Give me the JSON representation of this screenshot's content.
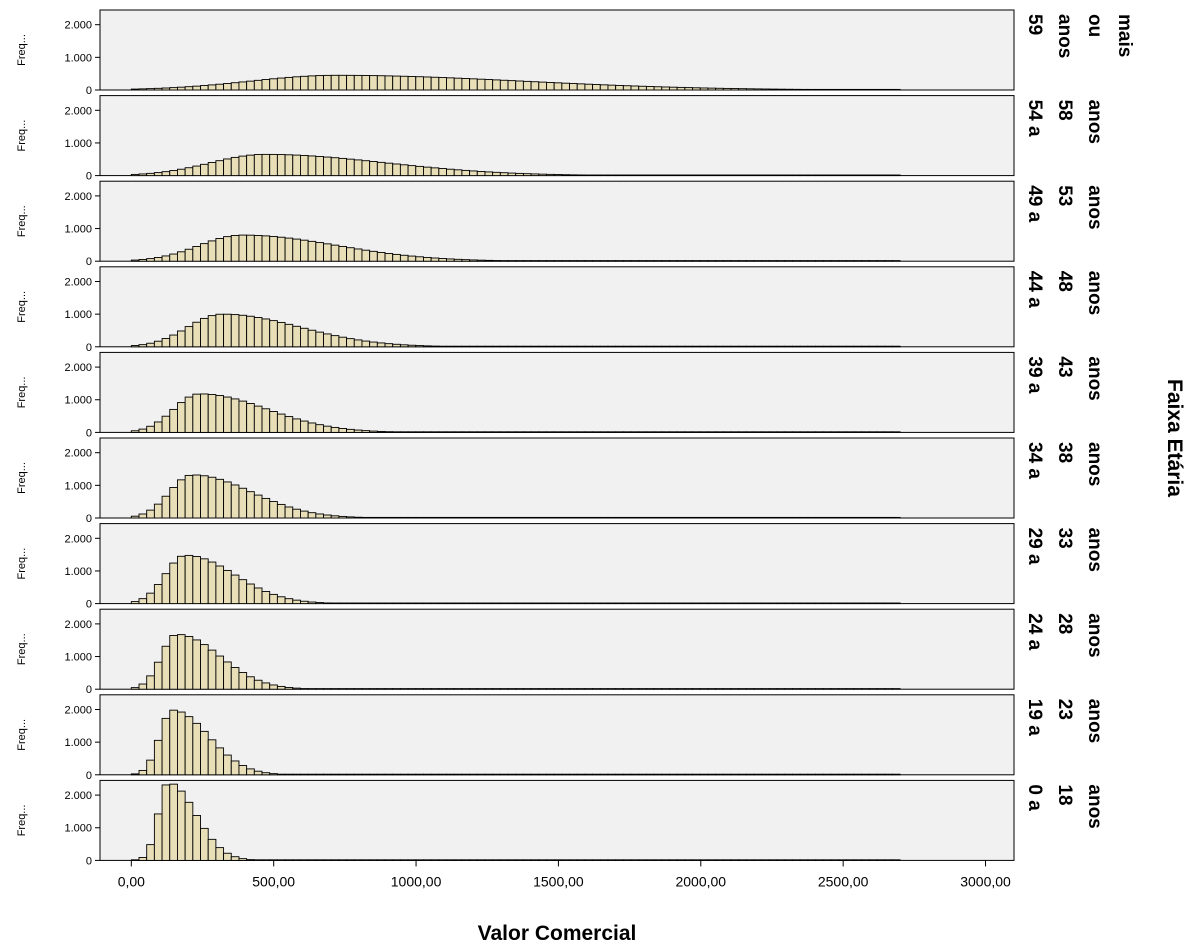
{
  "chart_data": {
    "type": "histogram-panel",
    "xlabel": "Valor Comercial",
    "facet_label": "Faixa Etária",
    "ylabel_short": "Freq...",
    "x_ticks": [
      "0,00",
      "500,00",
      "1000,00",
      "1500,00",
      "2000,00",
      "2500,00",
      "3000,00"
    ],
    "x_tick_values": [
      0,
      500,
      1000,
      1500,
      2000,
      2500,
      3000
    ],
    "xlim": [
      -110,
      3100
    ],
    "y_ticks": [
      "2.000",
      "1.000",
      "0"
    ],
    "y_tick_values": [
      2000,
      1000,
      0
    ],
    "ylim": [
      0,
      2450
    ],
    "bin_width": 27,
    "x_data_max": 2700,
    "colors": {
      "bar": "#e8deb8",
      "panel": "#f1f1f1",
      "border": "#000000"
    },
    "panels": [
      {
        "label": [
          "59",
          "anos",
          "ou",
          "mais"
        ],
        "peak_x": 720,
        "peak": 450,
        "sigma_left": 300,
        "sigma_right": 650
      },
      {
        "label": [
          "54 a",
          "58",
          "anos"
        ],
        "peak_x": 470,
        "peak": 650,
        "sigma_left": 190,
        "sigma_right": 420
      },
      {
        "label": [
          "49 a",
          "53",
          "anos"
        ],
        "peak_x": 390,
        "peak": 800,
        "sigma_left": 150,
        "sigma_right": 330
      },
      {
        "label": [
          "44 a",
          "48",
          "anos"
        ],
        "peak_x": 320,
        "peak": 1000,
        "sigma_left": 120,
        "sigma_right": 270
      },
      {
        "label": [
          "39 a",
          "43",
          "anos"
        ],
        "peak_x": 240,
        "peak": 1180,
        "sigma_left": 90,
        "sigma_right": 235
      },
      {
        "label": [
          "34 a",
          "38",
          "anos"
        ],
        "peak_x": 215,
        "peak": 1320,
        "sigma_left": 80,
        "sigma_right": 205
      },
      {
        "label": [
          "29 a",
          "33",
          "anos"
        ],
        "peak_x": 190,
        "peak": 1480,
        "sigma_left": 70,
        "sigma_right": 170
      },
      {
        "label": [
          "24 a",
          "28",
          "anos"
        ],
        "peak_x": 160,
        "peak": 1680,
        "sigma_left": 55,
        "sigma_right": 150
      },
      {
        "label": [
          "19 a",
          "23",
          "anos"
        ],
        "peak_x": 145,
        "peak": 1980,
        "sigma_left": 45,
        "sigma_right": 125
      },
      {
        "label": [
          "0 a",
          "18",
          "anos"
        ],
        "peak_x": 130,
        "peak": 2380,
        "sigma_left": 35,
        "sigma_right": 95
      }
    ]
  }
}
